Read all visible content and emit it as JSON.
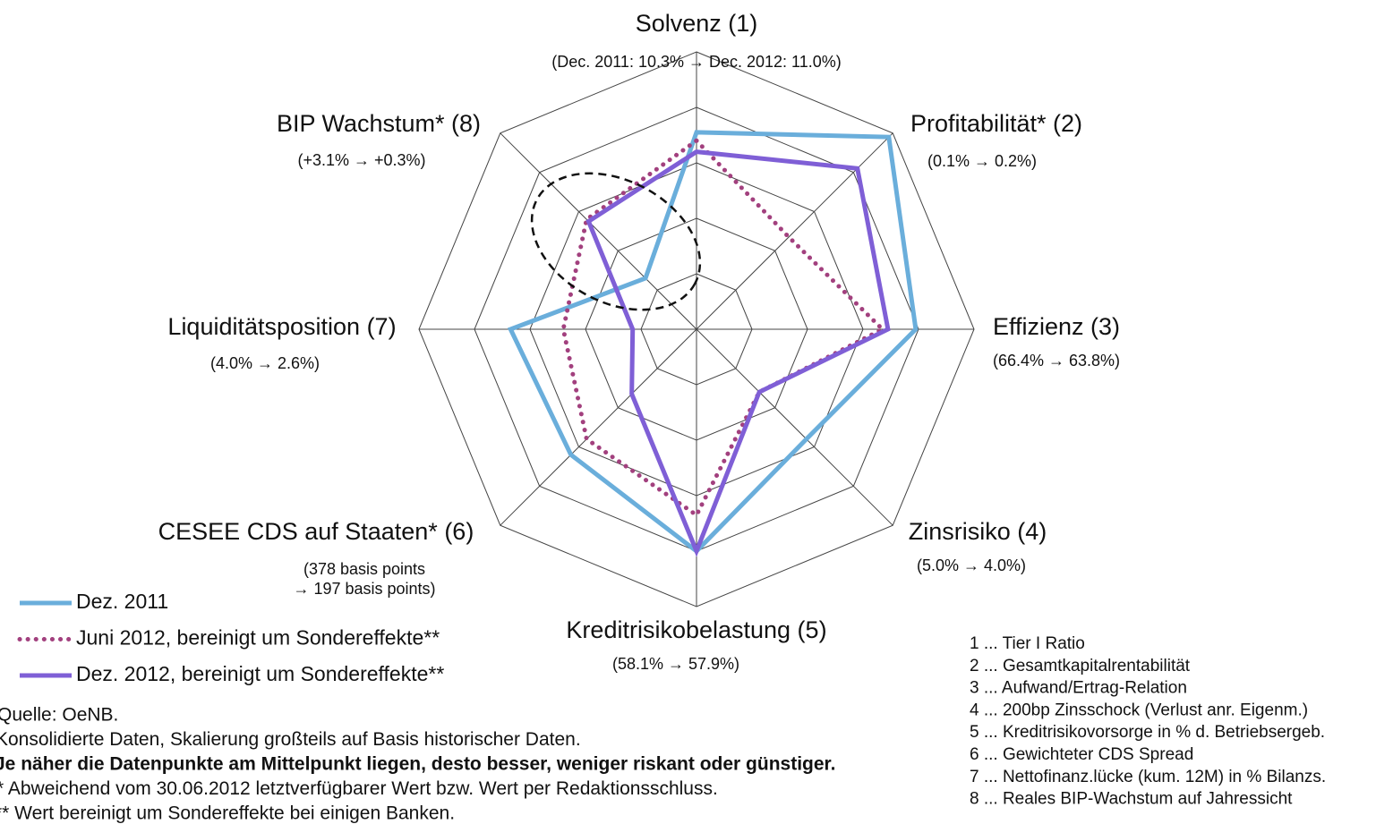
{
  "chart_data": {
    "type": "radar",
    "categories": [
      "Solvenz (1)",
      "Profitabilität* (2)",
      "Effizienz (3)",
      "Zinsrisiko (4)",
      "Kreditrisikobelastung (5)",
      "CESEE CDS auf Staaten* (6)",
      "Liquiditätsposition (7)",
      "BIP Wachstum* (8)"
    ],
    "category_notes": [
      [
        "(Dec. 2011: 10.3% → Dec. 2012: 11.0%)"
      ],
      [
        "(0.1% → 0.2%)"
      ],
      [
        "(66.4% → 63.8%)"
      ],
      [
        "(5.0% → 4.0%)"
      ],
      [
        "(58.1% → 57.9%)"
      ],
      [
        "(378 basis points",
        "→ 197 basis points)"
      ],
      [
        "(4.0% → 2.6%)"
      ],
      [
        "(+3.1% → +0.3%)"
      ]
    ],
    "series": [
      {
        "name": "Dez. 2011",
        "color": "#6aaedb",
        "style": "solid",
        "values": [
          3.55,
          4.9,
          3.95,
          2.8,
          4.0,
          3.2,
          3.35,
          1.3
        ]
      },
      {
        "name": "Juni 2012, bereinigt um Sondereffekte**",
        "color": "#a2407e",
        "style": "dotted",
        "values": [
          3.4,
          2.35,
          3.35,
          1.6,
          3.35,
          2.8,
          2.4,
          2.8
        ]
      },
      {
        "name": "Dez. 2012, bereinigt um Sondereffekte**",
        "color": "#7f5fd6",
        "style": "solid",
        "values": [
          3.2,
          4.1,
          3.45,
          1.6,
          4.0,
          1.65,
          1.15,
          2.75
        ]
      }
    ],
    "rlim": [
      0,
      5
    ],
    "rticks": [
      1,
      2,
      3,
      4,
      5
    ],
    "grid": true,
    "legend": "bottom-left"
  },
  "key": [
    "1 ... Tier I Ratio",
    "2 ... Gesamtkapitalrentabilität",
    "3 ... Aufwand/Ertrag-Relation",
    "4 ... 200bp Zinsschock (Verlust anr. Eigenm.)",
    "5 ... Kreditrisikovorsorge in % d. Betriebsergeb.",
    "6 ... Gewichteter CDS Spread",
    "7 ... Nettofinanz.lücke (kum. 12M) in % Bilanzs.",
    "8 ... Reales BIP-Wachstum auf Jahressicht"
  ],
  "footnotes": [
    "Quelle: OeNB.",
    "Konsolidierte Daten, Skalierung großteils auf Basis historischer Daten.",
    "Je näher die Datenpunkte am Mittelpunkt liegen, desto besser, weniger riskant oder günstiger.",
    "* Abweichend vom 30.06.2012 letztverfügbarer Wert bzw. Wert per Redaktionsschluss.",
    "** Wert bereinigt um Sondereffekte bei einigen Banken."
  ]
}
